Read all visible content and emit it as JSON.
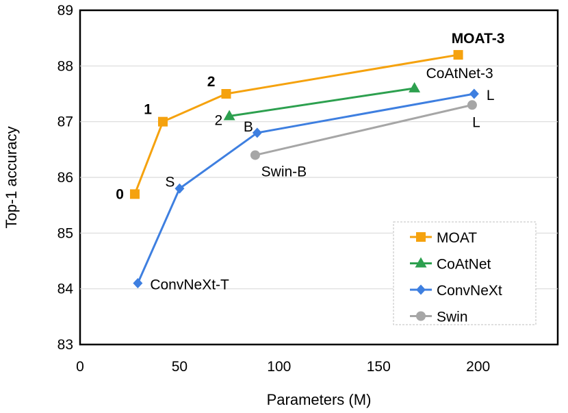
{
  "chart_data": {
    "type": "line",
    "title": "",
    "xlabel": "Parameters (M)",
    "ylabel": "Top-1 accuracy",
    "xlim": [
      0,
      240
    ],
    "ylim": [
      83,
      89
    ],
    "xticks": [
      "0",
      "50",
      "100",
      "150",
      "200"
    ],
    "yticks": [
      "83",
      "84",
      "85",
      "86",
      "87",
      "88",
      "89"
    ],
    "legend_position": "bottom-right",
    "series": [
      {
        "name": "MOAT",
        "color": "#F5A20E",
        "marker": "square",
        "x": [
          27.5,
          41.6,
          73.4,
          190
        ],
        "y": [
          85.7,
          87.0,
          87.5,
          88.2
        ]
      },
      {
        "name": "CoAtNet",
        "color": "#2DA04F",
        "marker": "triangle",
        "x": [
          75,
          168
        ],
        "y": [
          87.1,
          87.6
        ]
      },
      {
        "name": "ConvNeXt",
        "color": "#3E7FE0",
        "marker": "diamond",
        "x": [
          29,
          50,
          89,
          198
        ],
        "y": [
          84.1,
          85.8,
          86.8,
          87.5
        ]
      },
      {
        "name": "Swin",
        "color": "#A6A6A6",
        "marker": "circle",
        "x": [
          88,
          197
        ],
        "y": [
          86.4,
          87.3
        ]
      }
    ],
    "annotations": [
      {
        "text": "0",
        "bold": true,
        "x": 27.5,
        "y": 85.7,
        "anchor": "left"
      },
      {
        "text": "1",
        "bold": true,
        "x": 41.6,
        "y": 87.0,
        "anchor": "upper-left"
      },
      {
        "text": "2",
        "bold": true,
        "x": 73.4,
        "y": 87.5,
        "anchor": "upper-left"
      },
      {
        "text": "MOAT-3",
        "bold": true,
        "x": 190,
        "y": 88.2,
        "anchor": "above"
      },
      {
        "text": "2",
        "bold": false,
        "x": 75,
        "y": 87.1,
        "anchor": "lower-left"
      },
      {
        "text": "CoAtNet-3",
        "bold": false,
        "x": 168,
        "y": 87.6,
        "anchor": "upper-right"
      },
      {
        "text": "ConvNeXt-T",
        "bold": false,
        "x": 29,
        "y": 84.1,
        "anchor": "right"
      },
      {
        "text": "S",
        "bold": false,
        "x": 50,
        "y": 85.8,
        "anchor": "upper-left"
      },
      {
        "text": "B",
        "bold": false,
        "x": 89,
        "y": 86.8,
        "anchor": "upper-left"
      },
      {
        "text": "L",
        "bold": false,
        "x": 198,
        "y": 87.5,
        "anchor": "right"
      },
      {
        "text": "Swin-B",
        "bold": false,
        "x": 88,
        "y": 86.4,
        "anchor": "below"
      },
      {
        "text": "L",
        "bold": false,
        "x": 197,
        "y": 87.3,
        "anchor": "below"
      }
    ]
  }
}
